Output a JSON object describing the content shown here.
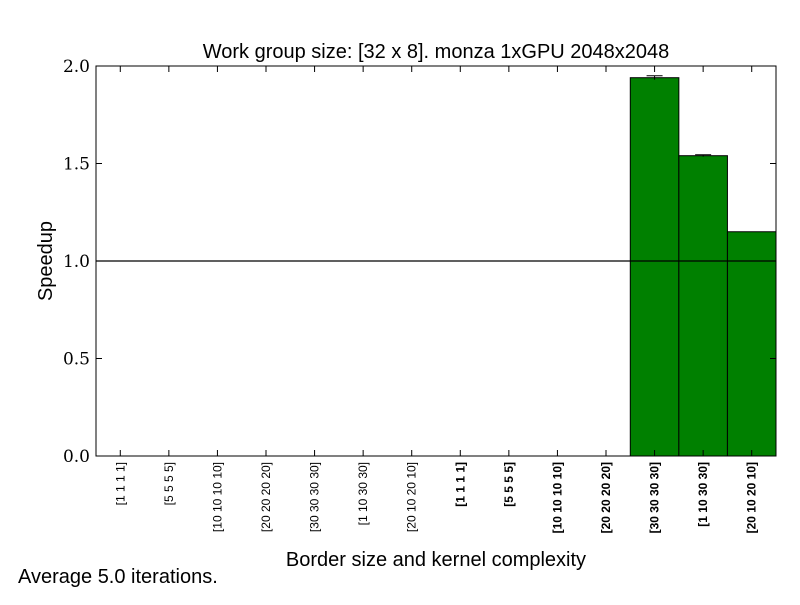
{
  "chart_data": {
    "type": "bar",
    "title": "Work group size: [32 x 8]. monza 1xGPU 2048x2048",
    "xlabel": "Border size and kernel complexity",
    "ylabel": "Speedup",
    "ylim": [
      0.0,
      2.0
    ],
    "yticks": [
      "0.0",
      "0.5",
      "1.0",
      "1.5",
      "2.0"
    ],
    "reference_line": 1.0,
    "categories": [
      {
        "label": "[1 1 1 1]",
        "bold": false
      },
      {
        "label": "[5 5 5 5]",
        "bold": false
      },
      {
        "label": "[10 10 10 10]",
        "bold": false
      },
      {
        "label": "[20 20 20 20]",
        "bold": false
      },
      {
        "label": "[30 30 30 30]",
        "bold": false
      },
      {
        "label": "[1 10 30 30]",
        "bold": false
      },
      {
        "label": "[20 10 20 10]",
        "bold": false
      },
      {
        "label": "[1 1 1 1]",
        "bold": true
      },
      {
        "label": "[5 5 5 5]",
        "bold": true
      },
      {
        "label": "[10 10 10 10]",
        "bold": true
      },
      {
        "label": "[20 20 20 20]",
        "bold": true
      },
      {
        "label": "[30 30 30 30]",
        "bold": true
      },
      {
        "label": "[1 10 30 30]",
        "bold": true
      },
      {
        "label": "[20 10 20 10]",
        "bold": true
      }
    ],
    "values": [
      0,
      0,
      0,
      0,
      0,
      0,
      0,
      0,
      0,
      0,
      0,
      1.94,
      1.54,
      1.15
    ],
    "errors": [
      0,
      0,
      0,
      0,
      0,
      0,
      0,
      0,
      0,
      0,
      0,
      0.01,
      0.005,
      0
    ],
    "bar_color": "#008000",
    "grid": false,
    "legend": "none"
  },
  "footnote": "Average 5.0 iterations."
}
